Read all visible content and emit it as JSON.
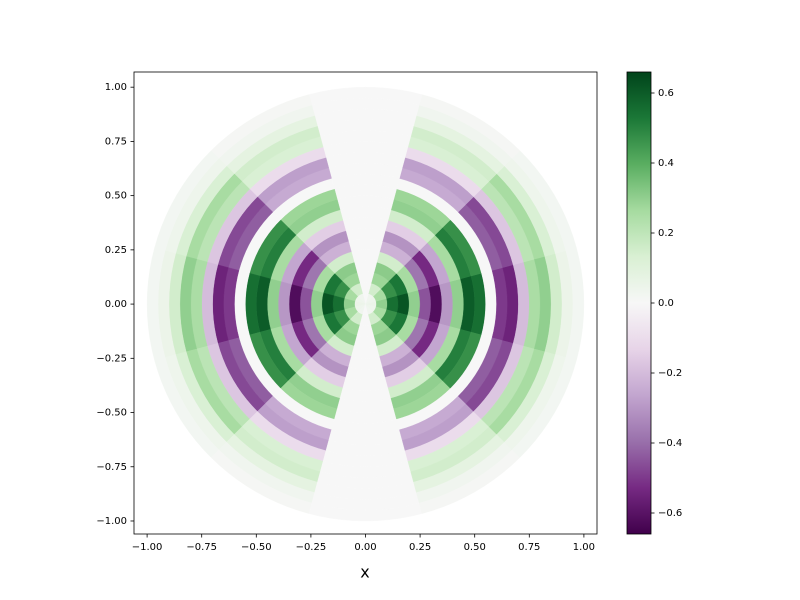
{
  "chart_data": {
    "type": "polar-heatmap",
    "xlabel": "x",
    "xlim": [
      -1.06,
      1.06
    ],
    "ylim": [
      -1.06,
      1.07
    ],
    "xticks": [
      {
        "value": -1,
        "label": "−1.00"
      },
      {
        "value": -0.75,
        "label": "−0.75"
      },
      {
        "value": -0.5,
        "label": "−0.50"
      },
      {
        "value": -0.25,
        "label": "−0.25"
      },
      {
        "value": 0,
        "label": "0.00"
      },
      {
        "value": 0.25,
        "label": "0.25"
      },
      {
        "value": 0.5,
        "label": "0.50"
      },
      {
        "value": 0.75,
        "label": "0.75"
      },
      {
        "value": 1,
        "label": "1.00"
      }
    ],
    "yticks": [
      {
        "value": -1,
        "label": "−1.00"
      },
      {
        "value": -0.75,
        "label": "−0.75"
      },
      {
        "value": -0.5,
        "label": "−0.50"
      },
      {
        "value": -0.25,
        "label": "−0.25"
      },
      {
        "value": 0,
        "label": "0.00"
      },
      {
        "value": 0.25,
        "label": "0.25"
      },
      {
        "value": 0.5,
        "label": "0.50"
      },
      {
        "value": 0.75,
        "label": "0.75"
      },
      {
        "value": 1,
        "label": "1.00"
      }
    ],
    "r_edges": [
      0,
      0.05,
      0.1,
      0.15,
      0.2,
      0.25,
      0.3,
      0.35,
      0.4,
      0.45,
      0.5,
      0.55,
      0.6,
      0.65,
      0.7,
      0.75,
      0.8,
      0.85,
      0.9,
      0.95,
      1
    ],
    "theta_edges": [
      -15,
      15,
      45,
      75,
      105,
      135,
      165,
      195,
      225,
      255,
      285,
      315,
      345
    ],
    "values": [
      [
        0.05,
        0.04,
        0.03,
        0,
        0.03,
        0.04,
        0.05,
        0.04,
        0.03,
        0,
        0.03,
        0.04
      ],
      [
        0.3,
        0.26,
        0.15,
        0,
        0.15,
        0.26,
        0.3,
        0.26,
        0.15,
        0,
        0.15,
        0.26
      ],
      [
        0.55,
        0.47,
        0.28,
        0,
        0.28,
        0.47,
        0.55,
        0.47,
        0.28,
        0,
        0.28,
        0.47
      ],
      [
        0.62,
        0.53,
        0.31,
        0,
        0.31,
        0.53,
        0.62,
        0.53,
        0.31,
        0,
        0.31,
        0.53
      ],
      [
        0.3,
        0.26,
        0.15,
        0,
        0.15,
        0.26,
        0.3,
        0.26,
        0.15,
        0,
        0.15,
        0.26
      ],
      [
        -0.45,
        -0.38,
        -0.23,
        0,
        -0.23,
        -0.38,
        -0.45,
        -0.38,
        -0.23,
        0,
        -0.23,
        -0.38
      ],
      [
        -0.62,
        -0.53,
        -0.31,
        0,
        -0.31,
        -0.53,
        -0.62,
        -0.53,
        -0.31,
        0,
        -0.31,
        -0.53
      ],
      [
        -0.3,
        -0.26,
        -0.15,
        0,
        -0.15,
        -0.26,
        -0.3,
        -0.26,
        -0.15,
        0,
        -0.15,
        -0.26
      ],
      [
        0.3,
        0.26,
        0.15,
        0,
        0.15,
        0.26,
        0.3,
        0.26,
        0.15,
        0,
        0.15,
        0.26
      ],
      [
        0.6,
        0.51,
        0.3,
        0,
        0.3,
        0.51,
        0.6,
        0.51,
        0.3,
        0,
        0.3,
        0.51
      ],
      [
        0.55,
        0.47,
        0.28,
        0,
        0.28,
        0.47,
        0.55,
        0.47,
        0.28,
        0,
        0.28,
        0.47
      ],
      [
        0,
        0,
        0,
        0,
        0,
        0,
        0,
        0,
        0,
        0,
        0,
        0
      ],
      [
        -0.5,
        -0.43,
        -0.25,
        0,
        -0.25,
        -0.43,
        -0.5,
        -0.43,
        -0.25,
        0,
        -0.25,
        -0.43
      ],
      [
        -0.55,
        -0.47,
        -0.28,
        0,
        -0.28,
        -0.47,
        -0.55,
        -0.47,
        -0.28,
        0,
        -0.28,
        -0.47
      ],
      [
        -0.2,
        -0.17,
        -0.1,
        0,
        -0.1,
        -0.17,
        -0.2,
        -0.17,
        -0.1,
        0,
        -0.1,
        -0.17
      ],
      [
        0.25,
        0.21,
        0.13,
        0,
        0.13,
        0.21,
        0.25,
        0.21,
        0.13,
        0,
        0.13,
        0.21
      ],
      [
        0.3,
        0.26,
        0.15,
        0,
        0.15,
        0.26,
        0.3,
        0.26,
        0.15,
        0,
        0.15,
        0.26
      ],
      [
        0.15,
        0.13,
        0.08,
        0,
        0.08,
        0.13,
        0.15,
        0.13,
        0.08,
        0,
        0.08,
        0.13
      ],
      [
        0.05,
        0.04,
        0.03,
        0,
        0.03,
        0.04,
        0.05,
        0.04,
        0.03,
        0,
        0.03,
        0.04
      ],
      [
        0.02,
        0.02,
        0.01,
        0,
        0.01,
        0.02,
        0.02,
        0.02,
        0.01,
        0,
        0.01,
        0.02
      ]
    ],
    "clim": [
      -0.66,
      0.66
    ],
    "colormap": [
      "#40004b",
      "#762a83",
      "#9970ab",
      "#c2a5cf",
      "#e7d4e8",
      "#f7f7f7",
      "#d9f0d3",
      "#a6dba0",
      "#5aae61",
      "#1b7837",
      "#00441b"
    ],
    "cticks": [
      {
        "value": -0.6,
        "label": "−0.6"
      },
      {
        "value": -0.4,
        "label": "−0.4"
      },
      {
        "value": -0.2,
        "label": "−0.2"
      },
      {
        "value": 0,
        "label": "0.0"
      },
      0.2,
      0.4,
      0.6
    ]
  }
}
